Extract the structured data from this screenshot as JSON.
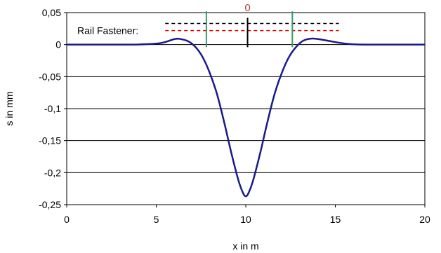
{
  "chart_data": {
    "type": "line",
    "title": "",
    "xlabel": "x in m",
    "ylabel": "s in mm",
    "xlim": [
      0,
      20
    ],
    "ylim": [
      -0.25,
      0.05
    ],
    "xticks": [
      0,
      5,
      10,
      15,
      20
    ],
    "yticks": [
      0.05,
      0,
      -0.05,
      -0.1,
      -0.15,
      -0.2,
      -0.25
    ],
    "xtick_labels": [
      "0",
      "5",
      "10",
      "15",
      "20"
    ],
    "ytick_labels": [
      "0,05",
      "0",
      "-0,05",
      "-0,1",
      "-0,15",
      "-0,2",
      "-0,25"
    ],
    "grid": "horizontal",
    "series": [
      {
        "color": "#1a1a8c",
        "x": [
          0,
          3.0,
          4.0,
          5.0,
          5.5,
          6.0,
          6.3,
          6.8,
          7.2,
          7.6,
          8.0,
          8.4,
          8.8,
          9.2,
          9.6,
          9.85,
          10.0,
          10.15,
          10.4,
          10.8,
          11.2,
          11.6,
          12.0,
          12.4,
          12.8,
          13.2,
          13.7,
          14.2,
          14.7,
          15.2,
          15.7,
          16.2,
          16.8,
          17.5,
          20
        ],
        "y": [
          0,
          0,
          0.0002,
          0.0015,
          0.004,
          0.0085,
          0.009,
          0.005,
          -0.004,
          -0.02,
          -0.045,
          -0.078,
          -0.122,
          -0.17,
          -0.213,
          -0.232,
          -0.237,
          -0.232,
          -0.213,
          -0.17,
          -0.122,
          -0.078,
          -0.045,
          -0.02,
          -0.004,
          0.006,
          0.0095,
          0.008,
          0.0055,
          0.003,
          0.0012,
          0.0003,
          0,
          0,
          0
        ]
      }
    ],
    "annotations": {
      "rail_fastener_label": "Rail Fastener:",
      "center_marker": "0",
      "black_dashed": {
        "x1": 5.5,
        "x2": 15.2,
        "y": 0.033,
        "color": "#000000"
      },
      "red_dashed": {
        "x1": 5.5,
        "x2": 15.2,
        "y": 0.022,
        "color": "#e00000"
      },
      "green_lines": {
        "x": [
          7.8,
          12.6
        ],
        "y_top": 0.052,
        "y_bottom": -0.004,
        "color": "#3a9a6a"
      },
      "black_center_line": {
        "x": 10.1,
        "y_top": 0.042,
        "y_bottom": -0.004,
        "color": "#000000"
      }
    }
  }
}
